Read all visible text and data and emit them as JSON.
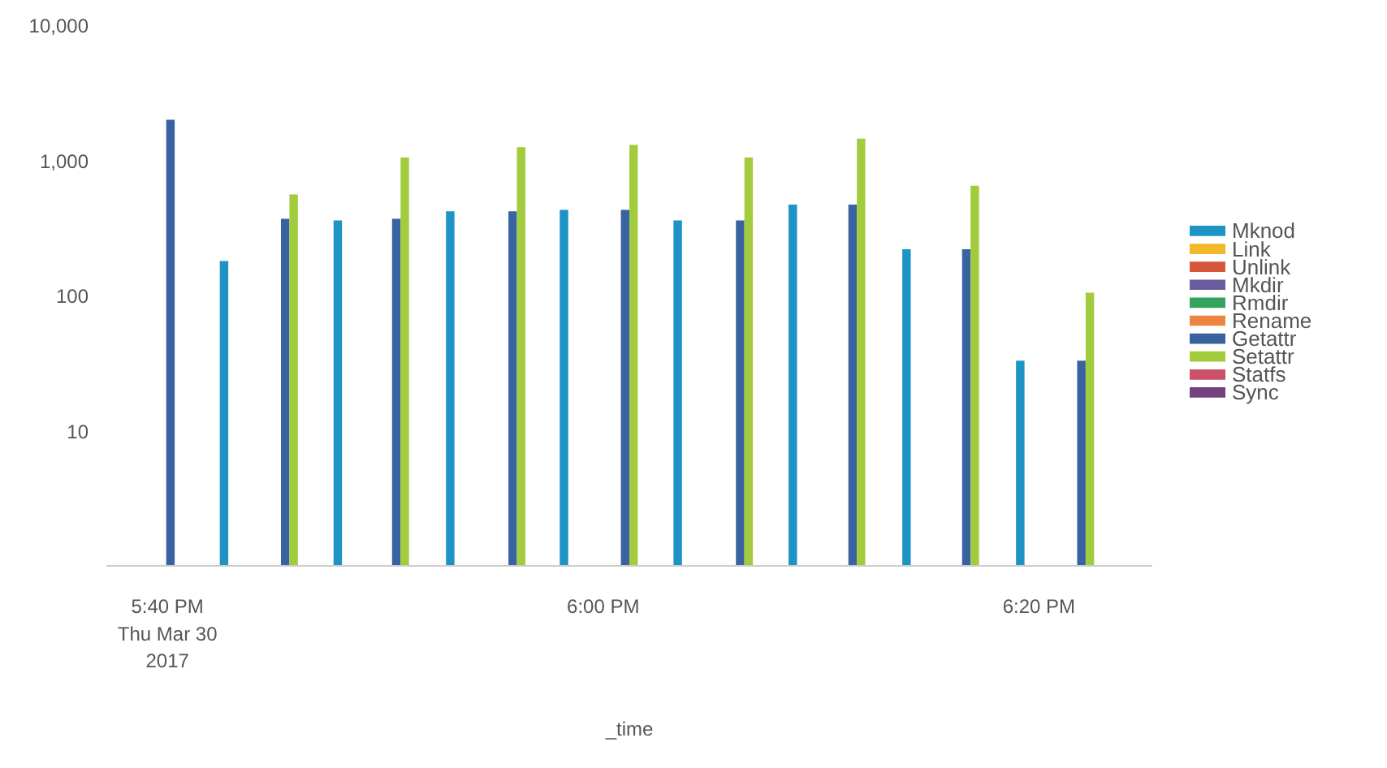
{
  "chart_data": {
    "type": "bar",
    "xlabel": "_time",
    "x": [
      17.669,
      17.71,
      17.76,
      17.797,
      17.845,
      17.883,
      17.934,
      17.97,
      18.02,
      18.057,
      18.108,
      18.145,
      18.194,
      18.232,
      18.281,
      18.319,
      18.369
    ],
    "series": [
      {
        "name": "Mknod",
        "color": "#1e93c6",
        "values": [
          null,
          180,
          null,
          360,
          null,
          420,
          null,
          430,
          null,
          360,
          null,
          470,
          null,
          220,
          null,
          33,
          null
        ]
      },
      {
        "name": "Link",
        "color": "#f2b827",
        "values": [
          null,
          null,
          null,
          null,
          null,
          null,
          null,
          null,
          null,
          null,
          null,
          null,
          null,
          null,
          null,
          null,
          null
        ]
      },
      {
        "name": "Unlink",
        "color": "#d6563c",
        "values": [
          null,
          null,
          null,
          null,
          null,
          null,
          null,
          null,
          null,
          null,
          null,
          null,
          null,
          null,
          null,
          null,
          null
        ]
      },
      {
        "name": "Mkdir",
        "color": "#6a5c9e",
        "values": [
          null,
          null,
          null,
          null,
          null,
          null,
          null,
          null,
          null,
          null,
          null,
          null,
          null,
          null,
          null,
          null,
          null
        ]
      },
      {
        "name": "Rmdir",
        "color": "#31a35f",
        "values": [
          null,
          null,
          null,
          null,
          null,
          null,
          null,
          null,
          null,
          null,
          null,
          null,
          null,
          null,
          null,
          null,
          null
        ]
      },
      {
        "name": "Rename",
        "color": "#ed8440",
        "values": [
          null,
          null,
          null,
          null,
          null,
          null,
          null,
          null,
          null,
          null,
          null,
          null,
          null,
          null,
          null,
          null,
          null
        ]
      },
      {
        "name": "Getattr",
        "color": "#3863a0",
        "values": [
          2000,
          null,
          370,
          null,
          370,
          null,
          420,
          null,
          430,
          null,
          360,
          null,
          470,
          null,
          220,
          null,
          33
        ]
      },
      {
        "name": "Setattr",
        "color": "#a2cc3e",
        "values": [
          null,
          null,
          560,
          null,
          1050,
          null,
          1250,
          null,
          1300,
          null,
          1050,
          null,
          1450,
          null,
          650,
          null,
          105
        ]
      },
      {
        "name": "Statfs",
        "color": "#cc5068",
        "values": [
          null,
          null,
          null,
          null,
          null,
          null,
          null,
          null,
          null,
          null,
          null,
          null,
          null,
          null,
          null,
          null,
          null
        ]
      },
      {
        "name": "Sync",
        "color": "#73427f",
        "values": [
          null,
          null,
          null,
          null,
          null,
          null,
          null,
          null,
          null,
          null,
          null,
          null,
          null,
          null,
          null,
          null,
          null
        ]
      }
    ],
    "log": "y",
    "ylim": [
      1,
      10000
    ],
    "yticks": [
      {
        "value": 10,
        "label": "10"
      },
      {
        "value": 100,
        "label": "100"
      },
      {
        "value": 1000,
        "label": "1,000"
      },
      {
        "value": 10000,
        "label": "10,000"
      }
    ],
    "xlim": [
      17.62,
      18.42
    ],
    "xticks": [
      {
        "value": 17.6667,
        "label": "5:40 PM\nThu Mar 30\n2017"
      },
      {
        "value": 18.0,
        "label": "6:00 PM"
      },
      {
        "value": 18.3333,
        "label": "6:20 PM"
      }
    ],
    "grid": false,
    "legend": "right"
  }
}
